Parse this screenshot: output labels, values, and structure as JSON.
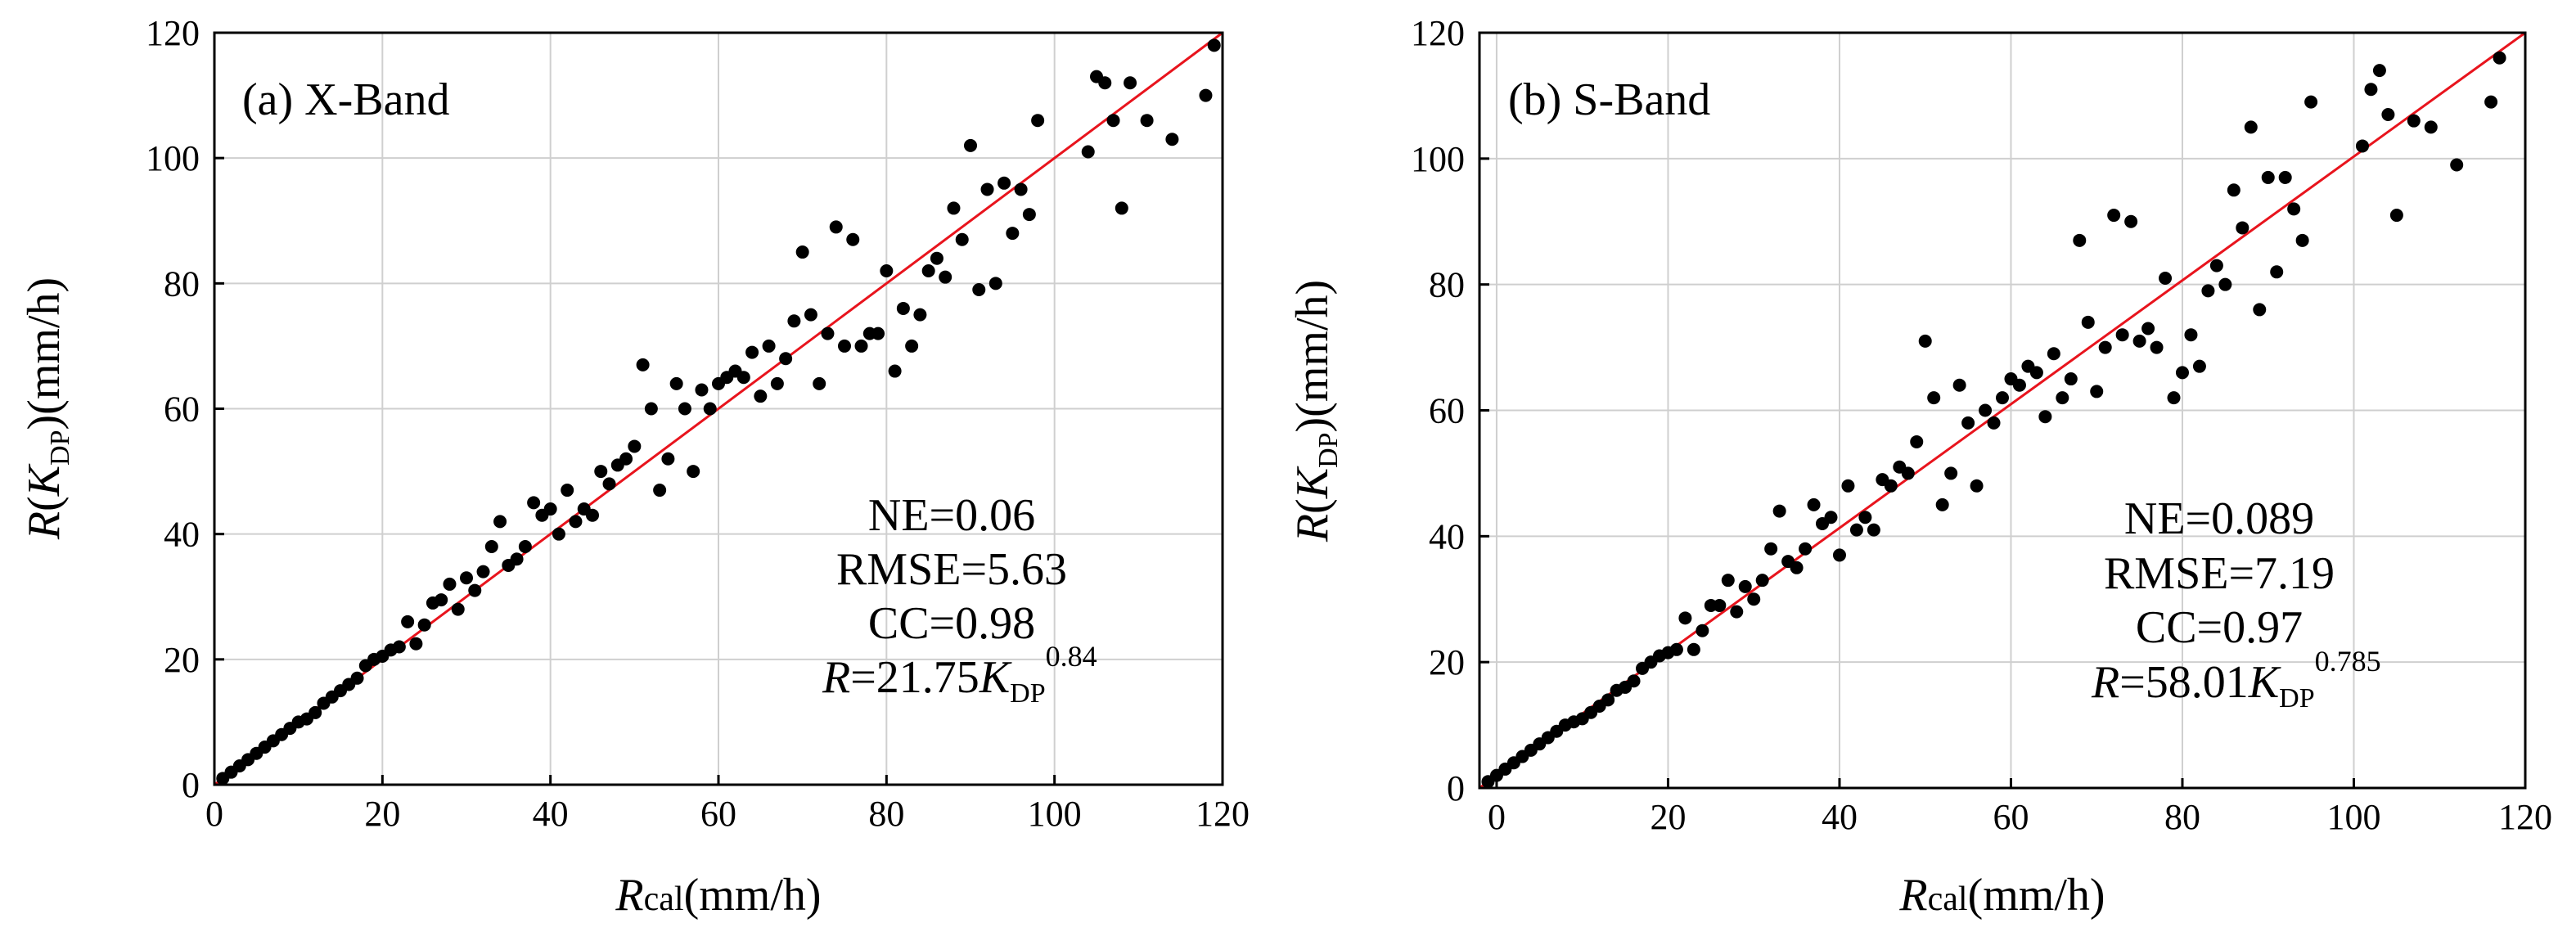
{
  "colors": {
    "fit_line": "#e8141d",
    "points": "#000000",
    "grid": "#cfcfcf"
  },
  "chart_data": [
    {
      "type": "scatter",
      "panel_label": "(a) X-Band",
      "xlim": [
        0,
        120
      ],
      "ylim": [
        0,
        120
      ],
      "xticks": [
        "0",
        "20",
        "40",
        "60",
        "80",
        "100",
        "120"
      ],
      "yticks": [
        "0",
        "20",
        "40",
        "60",
        "80",
        "100",
        "120"
      ],
      "xlabel": {
        "main": "R",
        "sub": "cal",
        "unit": "(mm/h)"
      },
      "ylabel": {
        "main": "R",
        "paren_open": "(",
        "var": "K",
        "sub": "DP",
        "paren_close": ")",
        "unit": "(mm/h)"
      },
      "stats": {
        "ne": "NE=0.06",
        "rmse": "RMSE=5.63",
        "cc": "CC=0.98",
        "eq_r": "R",
        "eq_mid": "=21.75",
        "eq_k": "K",
        "eq_sub": "DP",
        "eq_exp": "0.84"
      },
      "fit_line": {
        "x": [
          0,
          120
        ],
        "y": [
          0,
          120
        ]
      },
      "points": [
        [
          1,
          1
        ],
        [
          2,
          2
        ],
        [
          3,
          3
        ],
        [
          4,
          4
        ],
        [
          5,
          5
        ],
        [
          6,
          6
        ],
        [
          7,
          7
        ],
        [
          8,
          8
        ],
        [
          9,
          9
        ],
        [
          10,
          10
        ],
        [
          11,
          10.5
        ],
        [
          12,
          11.5
        ],
        [
          13,
          13
        ],
        [
          14,
          14
        ],
        [
          15,
          15
        ],
        [
          16,
          16
        ],
        [
          17,
          17
        ],
        [
          18,
          19
        ],
        [
          19,
          20
        ],
        [
          20,
          20.5
        ],
        [
          21,
          21.5
        ],
        [
          22,
          22
        ],
        [
          23,
          26
        ],
        [
          24,
          22.5
        ],
        [
          25,
          25.5
        ],
        [
          26,
          29
        ],
        [
          27,
          29.5
        ],
        [
          28,
          32
        ],
        [
          29,
          28
        ],
        [
          30,
          33
        ],
        [
          31,
          31
        ],
        [
          32,
          34
        ],
        [
          33,
          38
        ],
        [
          34,
          42
        ],
        [
          35,
          35
        ],
        [
          36,
          36
        ],
        [
          37,
          38
        ],
        [
          38,
          45
        ],
        [
          39,
          43
        ],
        [
          40,
          44
        ],
        [
          41,
          40
        ],
        [
          42,
          47
        ],
        [
          43,
          42
        ],
        [
          44,
          44
        ],
        [
          45,
          43
        ],
        [
          46,
          50
        ],
        [
          47,
          48
        ],
        [
          48,
          51
        ],
        [
          49,
          52
        ],
        [
          50,
          54
        ],
        [
          51,
          67
        ],
        [
          52,
          60
        ],
        [
          53,
          47
        ],
        [
          54,
          52
        ],
        [
          55,
          64
        ],
        [
          56,
          60
        ],
        [
          57,
          50
        ],
        [
          58,
          63
        ],
        [
          59,
          60
        ],
        [
          60,
          64
        ],
        [
          61,
          65
        ],
        [
          62,
          66
        ],
        [
          63,
          65
        ],
        [
          64,
          69
        ],
        [
          65,
          62
        ],
        [
          66,
          70
        ],
        [
          67,
          64
        ],
        [
          68,
          68
        ],
        [
          69,
          74
        ],
        [
          70,
          85
        ],
        [
          71,
          75
        ],
        [
          72,
          64
        ],
        [
          73,
          72
        ],
        [
          74,
          89
        ],
        [
          75,
          70
        ],
        [
          76,
          87
        ],
        [
          77,
          70
        ],
        [
          78,
          72
        ],
        [
          79,
          72
        ],
        [
          80,
          82
        ],
        [
          81,
          66
        ],
        [
          82,
          76
        ],
        [
          83,
          70
        ],
        [
          84,
          75
        ],
        [
          85,
          82
        ],
        [
          86,
          84
        ],
        [
          87,
          81
        ],
        [
          88,
          92
        ],
        [
          89,
          87
        ],
        [
          90,
          102
        ],
        [
          91,
          79
        ],
        [
          92,
          95
        ],
        [
          93,
          80
        ],
        [
          94,
          96
        ],
        [
          95,
          88
        ],
        [
          96,
          95
        ],
        [
          97,
          91
        ],
        [
          98,
          106
        ],
        [
          104,
          101
        ],
        [
          105,
          113
        ],
        [
          106,
          112
        ],
        [
          107,
          106
        ],
        [
          108,
          92
        ],
        [
          109,
          112
        ],
        [
          111,
          106
        ],
        [
          114,
          103
        ],
        [
          118,
          110
        ],
        [
          119,
          118
        ]
      ]
    },
    {
      "type": "scatter",
      "panel_label": "(b) S-Band",
      "xlim": [
        -2,
        120
      ],
      "ylim": [
        0,
        120
      ],
      "xticks": [
        "0",
        "20",
        "40",
        "60",
        "80",
        "100",
        "120"
      ],
      "yticks": [
        "0",
        "20",
        "40",
        "60",
        "80",
        "100",
        "120"
      ],
      "xlabel": {
        "main": "R",
        "sub": "cal",
        "unit": "(mm/h)"
      },
      "ylabel": {
        "main": "R",
        "paren_open": "(",
        "var": "K",
        "sub": "DP",
        "paren_close": ")",
        "unit": "(mm/h)"
      },
      "stats": {
        "ne": "NE=0.089",
        "rmse": "RMSE=7.19",
        "cc": "CC=0.97",
        "eq_r": "R",
        "eq_mid": "=58.01",
        "eq_k": "K",
        "eq_sub": "DP",
        "eq_exp": "0.785"
      },
      "fit_line": {
        "x": [
          -2,
          120
        ],
        "y": [
          0,
          120
        ]
      },
      "points": [
        [
          -1,
          1
        ],
        [
          0,
          2
        ],
        [
          1,
          3
        ],
        [
          2,
          4
        ],
        [
          3,
          5
        ],
        [
          4,
          6
        ],
        [
          5,
          7
        ],
        [
          6,
          8
        ],
        [
          7,
          9
        ],
        [
          8,
          10
        ],
        [
          9,
          10.5
        ],
        [
          10,
          11
        ],
        [
          11,
          12
        ],
        [
          12,
          13
        ],
        [
          13,
          14
        ],
        [
          14,
          15.5
        ],
        [
          15,
          16
        ],
        [
          16,
          17
        ],
        [
          17,
          19
        ],
        [
          18,
          20
        ],
        [
          19,
          21
        ],
        [
          20,
          21.5
        ],
        [
          21,
          22
        ],
        [
          22,
          27
        ],
        [
          23,
          22
        ],
        [
          24,
          25
        ],
        [
          25,
          29
        ],
        [
          26,
          29
        ],
        [
          27,
          33
        ],
        [
          28,
          28
        ],
        [
          29,
          32
        ],
        [
          30,
          30
        ],
        [
          31,
          33
        ],
        [
          32,
          38
        ],
        [
          33,
          44
        ],
        [
          34,
          36
        ],
        [
          35,
          35
        ],
        [
          36,
          38
        ],
        [
          37,
          45
        ],
        [
          38,
          42
        ],
        [
          39,
          43
        ],
        [
          40,
          37
        ],
        [
          41,
          48
        ],
        [
          42,
          41
        ],
        [
          43,
          43
        ],
        [
          44,
          41
        ],
        [
          45,
          49
        ],
        [
          46,
          48
        ],
        [
          47,
          51
        ],
        [
          48,
          50
        ],
        [
          49,
          55
        ],
        [
          50,
          71
        ],
        [
          51,
          62
        ],
        [
          52,
          45
        ],
        [
          53,
          50
        ],
        [
          54,
          64
        ],
        [
          55,
          58
        ],
        [
          56,
          48
        ],
        [
          57,
          60
        ],
        [
          58,
          58
        ],
        [
          59,
          62
        ],
        [
          60,
          65
        ],
        [
          61,
          64
        ],
        [
          62,
          67
        ],
        [
          63,
          66
        ],
        [
          64,
          59
        ],
        [
          65,
          69
        ],
        [
          66,
          62
        ],
        [
          67,
          65
        ],
        [
          68,
          87
        ],
        [
          69,
          74
        ],
        [
          70,
          63
        ],
        [
          71,
          70
        ],
        [
          72,
          91
        ],
        [
          73,
          72
        ],
        [
          74,
          90
        ],
        [
          75,
          71
        ],
        [
          76,
          73
        ],
        [
          77,
          70
        ],
        [
          78,
          81
        ],
        [
          79,
          62
        ],
        [
          80,
          66
        ],
        [
          81,
          72
        ],
        [
          82,
          67
        ],
        [
          83,
          79
        ],
        [
          84,
          83
        ],
        [
          85,
          80
        ],
        [
          86,
          95
        ],
        [
          87,
          89
        ],
        [
          88,
          105
        ],
        [
          89,
          76
        ],
        [
          90,
          97
        ],
        [
          91,
          82
        ],
        [
          92,
          97
        ],
        [
          93,
          92
        ],
        [
          94,
          87
        ],
        [
          95,
          109
        ],
        [
          101,
          102
        ],
        [
          102,
          111
        ],
        [
          103,
          114
        ],
        [
          104,
          107
        ],
        [
          105,
          91
        ],
        [
          107,
          106
        ],
        [
          109,
          105
        ],
        [
          112,
          99
        ],
        [
          116,
          109
        ],
        [
          117,
          116
        ]
      ]
    }
  ]
}
